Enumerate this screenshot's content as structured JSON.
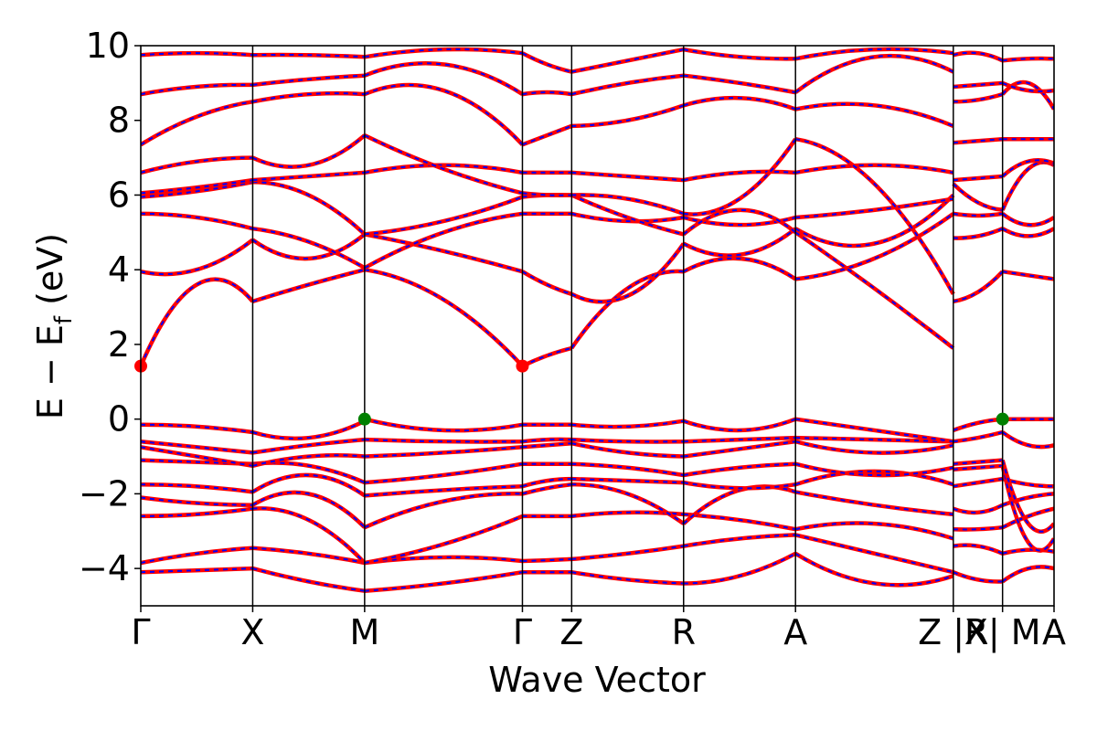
{
  "chart_data": {
    "type": "line",
    "xlabel": "Wave Vector",
    "ylabel": {
      "main": "E − E",
      "sub": "f",
      "unit": " (eV)"
    },
    "ylim": [
      -5,
      10
    ],
    "y_ticks": [
      -4,
      -2,
      0,
      2,
      4,
      6,
      8,
      10
    ],
    "y_tick_labels": [
      "−4",
      "−2",
      "0",
      "2",
      "4",
      "6",
      "8",
      "10"
    ],
    "x_range": [
      0,
      8.16
    ],
    "k_points": [
      {
        "label": "Γ",
        "x": 0.0
      },
      {
        "label": "X",
        "x": 1.0
      },
      {
        "label": "M",
        "x": 2.0
      },
      {
        "label": "Γ",
        "x": 3.41
      },
      {
        "label": "Z",
        "x": 3.85
      },
      {
        "label": "R",
        "x": 4.85
      },
      {
        "label": "A",
        "x": 5.85
      },
      {
        "label": "Z |R",
        "x": 7.26
      },
      {
        "label": "X| M",
        "x": 7.7
      },
      {
        "label": "A",
        "x": 8.16
      }
    ],
    "band_color_up": "#ff0000",
    "band_color_down": "#0000ff",
    "vbm_color": "#008000",
    "cbm_color": "#ff0000",
    "cbm": [
      {
        "x": 0.0,
        "y": 1.42
      },
      {
        "x": 3.41,
        "y": 1.42
      }
    ],
    "vbm": [
      {
        "x": 2.0,
        "y": 0.0
      },
      {
        "x": 7.7,
        "y": 0.0
      }
    ],
    "segments": [
      {
        "from": 0.0,
        "to": 1.0,
        "bands": [
          [
            -4.1,
            -4.05,
            -4.0
          ],
          [
            -3.85,
            -3.6,
            -3.45
          ],
          [
            -2.6,
            -2.55,
            -2.4
          ],
          [
            -2.1,
            -2.25,
            -2.3
          ],
          [
            -1.75,
            -1.8,
            -1.95
          ],
          [
            -1.1,
            -1.15,
            -1.2
          ],
          [
            -0.75,
            -1.0,
            -1.25
          ],
          [
            -0.6,
            -0.75,
            -0.9
          ],
          [
            -0.15,
            -0.2,
            -0.35
          ],
          [
            1.42,
            3.6,
            3.15
          ],
          [
            3.95,
            4.0,
            4.8
          ],
          [
            5.5,
            5.4,
            5.1
          ],
          [
            5.95,
            6.1,
            6.35
          ],
          [
            6.05,
            6.2,
            6.4
          ],
          [
            6.6,
            6.9,
            7.0
          ],
          [
            7.35,
            8.1,
            8.5
          ],
          [
            8.7,
            8.9,
            8.95
          ],
          [
            9.75,
            9.8,
            9.75
          ]
        ]
      },
      {
        "from": 1.0,
        "to": 2.0,
        "bands": [
          [
            -4.0,
            -4.35,
            -4.6
          ],
          [
            -3.45,
            -3.6,
            -3.85
          ],
          [
            -2.4,
            -2.7,
            -3.85
          ],
          [
            -2.3,
            -2.0,
            -2.9
          ],
          [
            -1.95,
            -1.5,
            -2.05
          ],
          [
            -1.2,
            -1.25,
            -1.7
          ],
          [
            -1.25,
            -1.0,
            -1.0
          ],
          [
            -0.9,
            -0.7,
            -0.55
          ],
          [
            -0.35,
            -0.5,
            -0.05
          ],
          [
            3.15,
            3.6,
            4.0
          ],
          [
            4.8,
            4.3,
            4.95
          ],
          [
            5.1,
            4.75,
            4.05
          ],
          [
            6.35,
            6.0,
            4.95
          ],
          [
            6.4,
            6.5,
            6.6
          ],
          [
            7.0,
            6.8,
            7.6
          ],
          [
            8.5,
            8.7,
            8.7
          ],
          [
            8.95,
            9.1,
            9.2
          ],
          [
            9.75,
            9.75,
            9.7
          ]
        ]
      },
      {
        "from": 2.0,
        "to": 3.41,
        "bands": [
          [
            -4.6,
            -4.4,
            -4.1
          ],
          [
            -3.85,
            -3.7,
            -3.8
          ],
          [
            -3.85,
            -3.35,
            -2.6
          ],
          [
            -2.9,
            -2.2,
            -2.0
          ],
          [
            -2.05,
            -1.9,
            -1.8
          ],
          [
            -1.7,
            -1.5,
            -1.2
          ],
          [
            -1.0,
            -0.9,
            -0.75
          ],
          [
            -0.55,
            -0.6,
            -0.6
          ],
          [
            0.0,
            -0.3,
            -0.15
          ],
          [
            4.0,
            3.2,
            1.42
          ],
          [
            4.95,
            4.5,
            3.95
          ],
          [
            4.05,
            5.0,
            5.5
          ],
          [
            4.95,
            5.3,
            5.95
          ],
          [
            6.6,
            6.8,
            6.6
          ],
          [
            7.6,
            6.7,
            6.05
          ],
          [
            8.7,
            8.8,
            7.35
          ],
          [
            9.2,
            9.5,
            8.7
          ],
          [
            9.7,
            9.9,
            9.8
          ]
        ]
      },
      {
        "from": 3.41,
        "to": 3.85,
        "bands": [
          [
            -4.1,
            -4.1,
            -4.1
          ],
          [
            -3.8,
            -3.78,
            -3.75
          ],
          [
            -2.6,
            -2.6,
            -2.6
          ],
          [
            -2.0,
            -1.85,
            -1.75
          ],
          [
            -1.8,
            -1.65,
            -1.6
          ],
          [
            -1.2,
            -1.2,
            -1.2
          ],
          [
            -0.75,
            -0.7,
            -0.65
          ],
          [
            -0.6,
            -0.55,
            -0.55
          ],
          [
            -0.15,
            -0.15,
            -0.15
          ],
          [
            1.42,
            1.7,
            1.9
          ],
          [
            3.95,
            3.6,
            3.35
          ],
          [
            5.5,
            5.5,
            5.5
          ],
          [
            5.95,
            6.0,
            6.0
          ],
          [
            6.6,
            6.6,
            6.6
          ],
          [
            6.05,
            6.0,
            6.0
          ],
          [
            7.35,
            7.6,
            7.85
          ],
          [
            8.7,
            8.75,
            8.7
          ],
          [
            9.8,
            9.5,
            9.3
          ]
        ]
      },
      {
        "from": 3.85,
        "to": 4.85,
        "bands": [
          [
            -4.1,
            -4.3,
            -4.4
          ],
          [
            -3.75,
            -3.6,
            -3.4
          ],
          [
            -2.6,
            -2.5,
            -2.55
          ],
          [
            -1.75,
            -2.0,
            -2.8
          ],
          [
            -1.6,
            -1.65,
            -1.7
          ],
          [
            -1.2,
            -1.3,
            -1.5
          ],
          [
            -0.65,
            -0.9,
            -1.0
          ],
          [
            -0.55,
            -0.6,
            -0.6
          ],
          [
            -0.15,
            -0.2,
            -0.05
          ],
          [
            1.9,
            3.5,
            3.95
          ],
          [
            3.35,
            3.3,
            4.7
          ],
          [
            5.5,
            5.3,
            5.4
          ],
          [
            6.0,
            5.4,
            4.95
          ],
          [
            6.6,
            6.5,
            6.4
          ],
          [
            6.0,
            5.9,
            5.5
          ],
          [
            7.85,
            8.0,
            8.4
          ],
          [
            8.7,
            9.0,
            9.2
          ],
          [
            9.3,
            9.6,
            9.9
          ]
        ]
      },
      {
        "from": 4.85,
        "to": 5.85,
        "bands": [
          [
            -4.4,
            -4.2,
            -3.6
          ],
          [
            -3.4,
            -3.2,
            -3.1
          ],
          [
            -2.55,
            -2.7,
            -2.95
          ],
          [
            -2.8,
            -1.9,
            -1.95
          ],
          [
            -1.7,
            -1.85,
            -1.75
          ],
          [
            -1.5,
            -1.3,
            -1.2
          ],
          [
            -1.0,
            -0.8,
            -0.6
          ],
          [
            -0.6,
            -0.55,
            -0.5
          ],
          [
            -0.05,
            -0.3,
            0.0
          ],
          [
            3.95,
            4.3,
            3.75
          ],
          [
            4.7,
            4.4,
            5.1
          ],
          [
            5.4,
            5.2,
            5.4
          ],
          [
            4.95,
            5.6,
            5.0
          ],
          [
            6.4,
            6.6,
            6.6
          ],
          [
            5.5,
            5.9,
            7.5
          ],
          [
            8.4,
            8.6,
            8.3
          ],
          [
            9.2,
            9.0,
            8.75
          ],
          [
            9.9,
            9.7,
            9.65
          ]
        ]
      },
      {
        "from": 5.85,
        "to": 7.26,
        "bands": [
          [
            -3.6,
            -4.4,
            -4.2
          ],
          [
            -3.1,
            -3.6,
            -4.1
          ],
          [
            -2.95,
            -2.8,
            -3.2
          ],
          [
            -1.95,
            -2.3,
            -2.55
          ],
          [
            -1.75,
            -1.4,
            -1.75
          ],
          [
            -1.2,
            -1.5,
            -1.3
          ],
          [
            -0.6,
            -0.9,
            -0.7
          ],
          [
            -0.5,
            -0.55,
            -0.6
          ],
          [
            0.0,
            -0.3,
            -0.6
          ],
          [
            3.75,
            4.3,
            5.5
          ],
          [
            5.1,
            4.7,
            6.0
          ],
          [
            5.4,
            5.6,
            5.9
          ],
          [
            5.0,
            3.5,
            1.9
          ],
          [
            6.6,
            6.8,
            6.6
          ],
          [
            7.5,
            6.3,
            3.35
          ],
          [
            8.3,
            8.4,
            7.85
          ],
          [
            8.75,
            9.7,
            9.3
          ],
          [
            9.65,
            9.9,
            9.8
          ]
        ]
      },
      {
        "from": 7.26,
        "to": 7.7,
        "bands": [
          [
            -4.1,
            -4.3,
            -4.35
          ],
          [
            -3.4,
            -3.4,
            -3.6
          ],
          [
            -2.95,
            -2.95,
            -2.9
          ],
          [
            -2.4,
            -2.5,
            -2.3
          ],
          [
            -1.8,
            -1.7,
            -1.6
          ],
          [
            -1.35,
            -1.3,
            -1.25
          ],
          [
            -1.2,
            -1.15,
            -1.1
          ],
          [
            -0.6,
            -0.5,
            -0.35
          ],
          [
            -0.3,
            -0.1,
            0.0
          ],
          [
            3.15,
            3.4,
            3.95
          ],
          [
            4.85,
            4.9,
            5.1
          ],
          [
            5.5,
            5.45,
            5.5
          ],
          [
            6.3,
            5.8,
            5.6
          ],
          [
            6.4,
            6.45,
            6.5
          ],
          [
            7.4,
            7.45,
            7.5
          ],
          [
            8.5,
            8.55,
            8.7
          ],
          [
            8.9,
            8.95,
            9.0
          ],
          [
            9.75,
            9.8,
            9.6
          ]
        ]
      },
      {
        "from": 7.7,
        "to": 8.16,
        "bands": [
          [
            -4.35,
            -4.0,
            -4.0
          ],
          [
            -3.6,
            -3.5,
            -3.55
          ],
          [
            -2.9,
            -2.6,
            -2.4
          ],
          [
            -2.3,
            -2.1,
            -2.0
          ],
          [
            -1.6,
            -1.75,
            -1.8
          ],
          [
            -1.25,
            -3.3,
            -3.2
          ],
          [
            -1.1,
            -2.8,
            -2.8
          ],
          [
            -0.35,
            -0.7,
            -0.7
          ],
          [
            0.0,
            0.0,
            0.0
          ],
          [
            3.95,
            3.85,
            3.75
          ],
          [
            5.1,
            4.9,
            5.1
          ],
          [
            5.5,
            5.2,
            5.4
          ],
          [
            5.6,
            6.7,
            6.8
          ],
          [
            6.5,
            6.9,
            6.85
          ],
          [
            7.5,
            7.5,
            7.5
          ],
          [
            8.7,
            9.0,
            8.3
          ],
          [
            9.0,
            8.8,
            8.8
          ],
          [
            9.6,
            9.65,
            9.65
          ]
        ]
      }
    ]
  }
}
